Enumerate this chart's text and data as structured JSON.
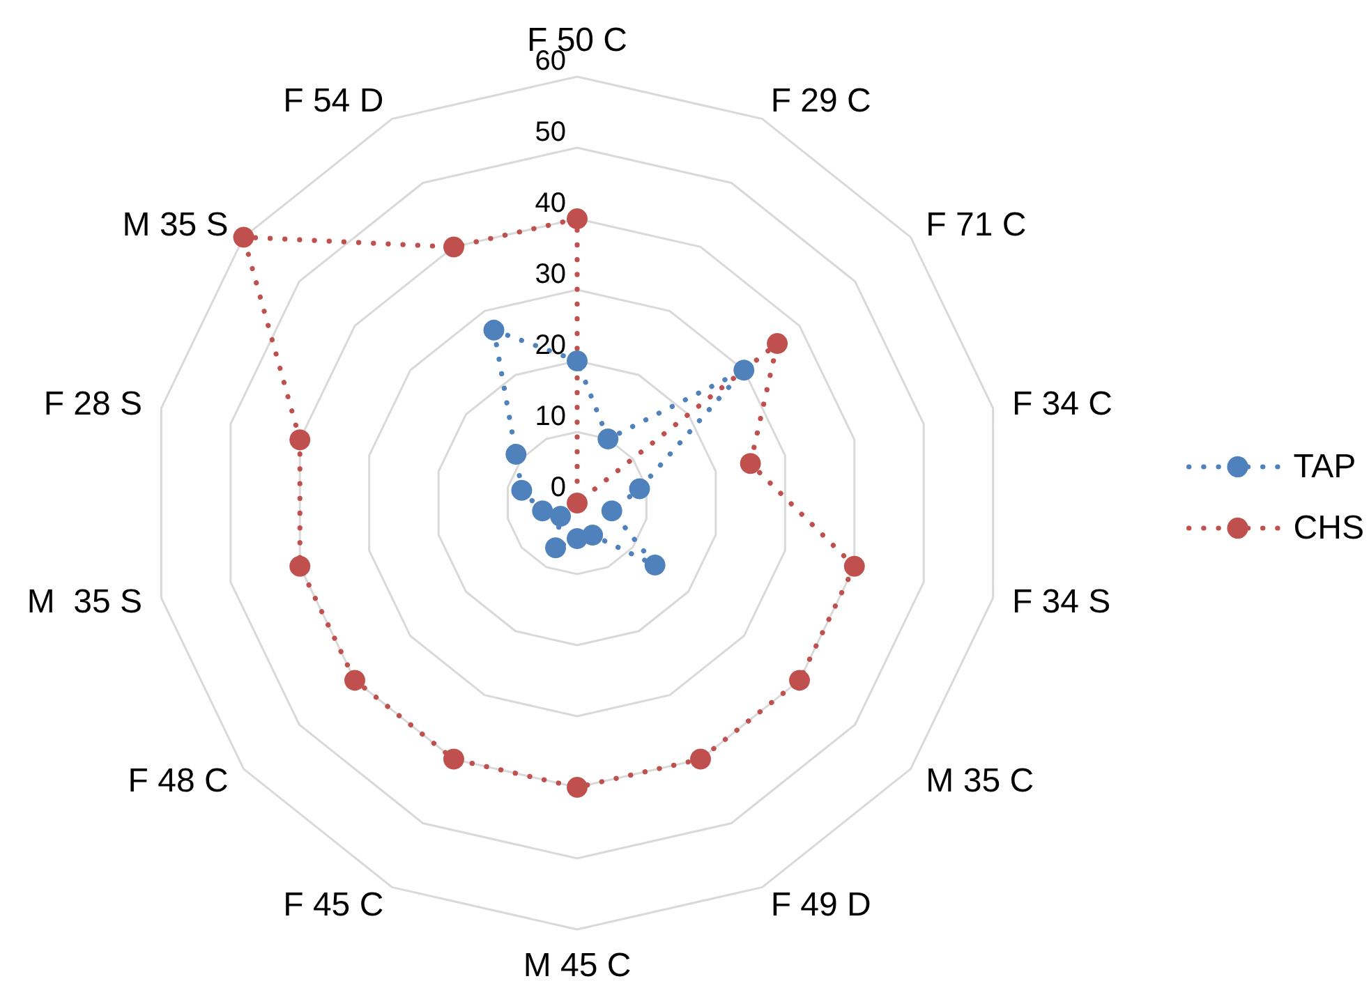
{
  "chart_data": {
    "type": "radar",
    "categories": [
      "F 50 C",
      "F 29 C",
      "F 71 C",
      "F 34 C",
      "F 34 S",
      "M 35 C",
      "F 49 D",
      "M 45 C",
      "F 45 C",
      "F 48 C",
      "M  35 S",
      "F 28 S",
      "M 35 S",
      "F 54 D"
    ],
    "series": [
      {
        "name": "TAP",
        "color": "#4f81bd",
        "values": [
          20,
          10,
          30,
          9,
          5,
          14,
          5,
          5,
          7,
          3,
          5,
          8,
          11,
          27
        ]
      },
      {
        "name": "CHS",
        "color": "#c0504d",
        "values": [
          40,
          0,
          36,
          25,
          40,
          40,
          40,
          40,
          40,
          40,
          40,
          40,
          60,
          40
        ]
      }
    ],
    "ylim": [
      0,
      60
    ],
    "yticks": [
      0,
      10,
      20,
      30,
      40,
      50,
      60
    ],
    "grid": true,
    "legend": "right",
    "marker": "circle",
    "line_style": "dotted"
  }
}
